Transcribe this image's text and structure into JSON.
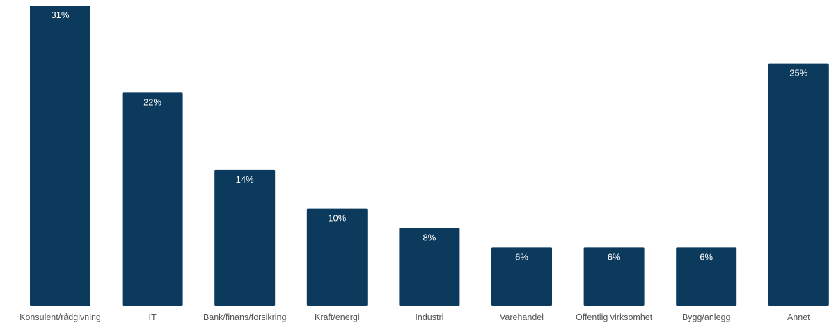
{
  "chart_data": {
    "type": "bar",
    "categories": [
      "Konsulent/rådgivning",
      "IT",
      "Bank/finans/forsikring",
      "Kraft/energi",
      "Industri",
      "Varehandel",
      "Offentlig virksomhet",
      "Bygg/anlegg",
      "Annet"
    ],
    "values": [
      31,
      22,
      14,
      10,
      8,
      6,
      6,
      6,
      25
    ],
    "value_labels": [
      "31%",
      "22%",
      "14%",
      "10%",
      "8%",
      "6%",
      "6%",
      "6%",
      "25%"
    ],
    "unit": "%",
    "ylim": [
      0,
      31
    ],
    "grid": false,
    "legend": "none",
    "colors": {
      "bar": "#0b3a5c",
      "value_label": "#ffffff",
      "category_label": "#555555",
      "background": "#ffffff"
    }
  }
}
